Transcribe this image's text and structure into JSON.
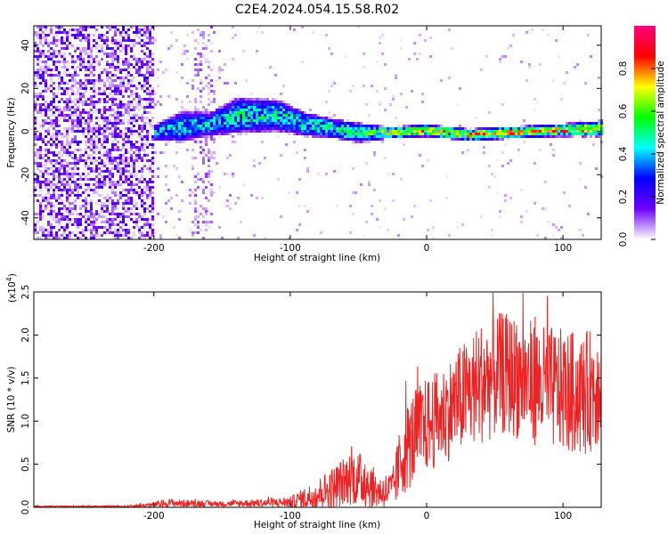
{
  "title": "C2E4.2024.054.15.58.R02",
  "chart_data": [
    {
      "type": "heatmap",
      "xlabel": "Height of straight line (km)",
      "ylabel": "Frequency (Hz)",
      "xlim": [
        -288,
        128
      ],
      "ylim": [
        -50,
        49
      ],
      "xticks": [
        -200,
        -100,
        0,
        100
      ],
      "yticks": [
        -40,
        -20,
        0,
        20,
        40
      ],
      "x_tick_labels": [
        "-200",
        "-100",
        "0",
        "100"
      ],
      "y_tick_labels": [
        "-40",
        "-20",
        "0",
        "20",
        "40"
      ],
      "colorbar": {
        "label": "Normalized spectral amplitude",
        "range": [
          0,
          1
        ],
        "ticks": [
          0.0,
          0.2,
          0.4,
          0.6,
          0.8
        ],
        "tick_labels": [
          "0.0",
          "0.2",
          "0.4",
          "0.6",
          "0.8"
        ],
        "colormap": [
          "#ffffff",
          "#7000ff",
          "#0000ff",
          "#00ffff",
          "#00ff00",
          "#ffff00",
          "#ff0000",
          "#ff0080"
        ]
      },
      "signal_track": [
        {
          "x": -200,
          "center": 0,
          "halfwidth": 4,
          "strength": 0.45
        },
        {
          "x": -180,
          "center": 3,
          "halfwidth": 8,
          "strength": 0.45
        },
        {
          "x": -160,
          "center": 4,
          "halfwidth": 6,
          "strength": 0.45
        },
        {
          "x": -140,
          "center": 8,
          "halfwidth": 9,
          "strength": 0.5
        },
        {
          "x": -110,
          "center": 8,
          "halfwidth": 8,
          "strength": 0.5
        },
        {
          "x": -90,
          "center": 4,
          "halfwidth": 6,
          "strength": 0.5
        },
        {
          "x": -70,
          "center": 2,
          "halfwidth": 5,
          "strength": 0.55
        },
        {
          "x": -50,
          "center": 0,
          "halfwidth": 5,
          "strength": 0.55
        },
        {
          "x": -30,
          "center": 0,
          "halfwidth": 3,
          "strength": 0.7
        },
        {
          "x": 0,
          "center": 1,
          "halfwidth": 3,
          "strength": 0.8
        },
        {
          "x": 30,
          "center": -1,
          "halfwidth": 3,
          "strength": 0.8
        },
        {
          "x": 60,
          "center": 0,
          "halfwidth": 3,
          "strength": 0.8
        },
        {
          "x": 90,
          "center": 1,
          "halfwidth": 3,
          "strength": 0.8
        },
        {
          "x": 128,
          "center": 2,
          "halfwidth": 4,
          "strength": 0.75
        }
      ]
    },
    {
      "type": "line",
      "xlabel": "Height of straight line (km)",
      "ylabel": "SNR (10 * v/v)",
      "y_multiplier": "(x10",
      "y_multiplier_exp": "4",
      "y_multiplier_close": ")",
      "xlim": [
        -288,
        128
      ],
      "ylim": [
        0,
        2.5
      ],
      "xticks": [
        -200,
        -100,
        0,
        100
      ],
      "yticks": [
        0.0,
        0.5,
        1.0,
        1.5,
        2.0,
        2.5
      ],
      "x_tick_labels": [
        "-200",
        "-100",
        "0",
        "100"
      ],
      "y_tick_labels": [
        "0.0",
        "0.5",
        "1.0",
        "1.5",
        "2.0",
        "2.5"
      ],
      "series": [
        {
          "color": "#ee2222",
          "envelope": {
            "x": [
              -288,
              -220,
              -200,
              -190,
              -150,
              -120,
              -100,
              -85,
              -70,
              -55,
              -45,
              -35,
              -25,
              -18,
              -10,
              0,
              10,
              25,
              40,
              55,
              70,
              85,
              100,
              115,
              128
            ],
            "mean": [
              0.01,
              0.01,
              0.03,
              0.05,
              0.04,
              0.05,
              0.06,
              0.12,
              0.22,
              0.35,
              0.3,
              0.18,
              0.2,
              0.6,
              0.8,
              0.95,
              1.05,
              1.25,
              1.45,
              1.55,
              1.5,
              1.4,
              1.35,
              1.3,
              1.45
            ],
            "spread": [
              0.005,
              0.006,
              0.02,
              0.03,
              0.02,
              0.03,
              0.04,
              0.1,
              0.15,
              0.2,
              0.2,
              0.12,
              0.15,
              0.3,
              0.35,
              0.35,
              0.35,
              0.4,
              0.45,
              0.45,
              0.45,
              0.45,
              0.45,
              0.45,
              0.45
            ]
          }
        }
      ]
    }
  ]
}
